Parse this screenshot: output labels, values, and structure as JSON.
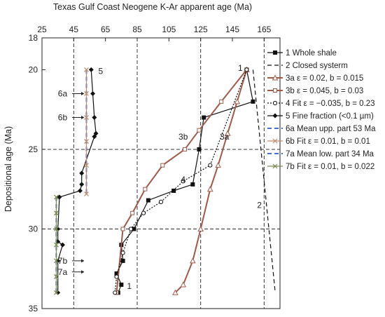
{
  "chart_data": {
    "type": "line",
    "title": "Texas Gulf Coast Neogene K-Ar apparent age (Ma)",
    "ylabel": "Depositional age (Ma)",
    "xlim": [
      25,
      175
    ],
    "ylim": [
      18,
      35
    ],
    "x_ticks": [
      25,
      45,
      65,
      85,
      105,
      125,
      145,
      165
    ],
    "y_ticks": [
      18,
      20,
      25,
      30,
      35
    ],
    "grid_x": [
      45,
      85,
      125,
      165
    ],
    "grid_y": [
      25,
      30
    ],
    "legend_position": "right",
    "series": [
      {
        "name": "1 Whole shale",
        "color": "#111111",
        "style": "solid",
        "marker": "square-filled",
        "x": [
          154,
          158,
          127,
          124,
          120,
          108,
          92,
          83,
          75,
          76,
          72,
          75,
          73
        ],
        "y": [
          20,
          22,
          23,
          25,
          27.2,
          27.6,
          28.2,
          30,
          31,
          32,
          32.8,
          33.5,
          34
        ]
      },
      {
        "name": "2 Closed systerm",
        "color": "#111111",
        "style": "dashed",
        "marker": "none",
        "x": [
          158,
          172
        ],
        "y": [
          20,
          34
        ]
      },
      {
        "name": "3a ε = 0.02, b = 0.015",
        "color": "#a05a4a",
        "style": "solid",
        "marker": "triangle-open",
        "x": [
          154,
          148,
          142,
          136,
          131,
          125,
          120,
          114,
          109
        ],
        "y": [
          20,
          22,
          24,
          26,
          27.5,
          30,
          32,
          33.5,
          34
        ]
      },
      {
        "name": "3b ε = 0.045, b = 0.03",
        "color": "#a05a4a",
        "style": "solid",
        "marker": "square-open",
        "x": [
          154,
          138,
          124,
          115,
          101,
          90,
          82,
          76,
          72
        ],
        "y": [
          20,
          22,
          23.8,
          25,
          26,
          27.5,
          29,
          30,
          34
        ]
      },
      {
        "name": "4 Fit ε = −0.035, b = 0.23",
        "color": "#111111",
        "style": "dotted",
        "marker": "circle-open",
        "x": [
          154,
          131,
          114,
          100,
          89,
          81,
          76,
          72,
          71
        ],
        "y": [
          20,
          26,
          27,
          28.3,
          29,
          30,
          31.5,
          33,
          34
        ]
      },
      {
        "name": "5 Fine fraction (<0.1 µm)",
        "color": "#111111",
        "style": "solid",
        "marker": "diamond-filled",
        "x": [
          56,
          57,
          58,
          59,
          58,
          50,
          50,
          49,
          36,
          35,
          35,
          38,
          35,
          35
        ],
        "y": [
          20,
          21.5,
          23,
          24,
          24.2,
          26.5,
          27.2,
          27.6,
          28,
          30,
          30.8,
          31,
          32,
          34
        ]
      },
      {
        "name": "6a Mean upp. part 53 Ma",
        "color": "#4a6fd0",
        "style": "dashed",
        "marker": "none",
        "x": [
          53,
          53
        ],
        "y": [
          20,
          27.8
        ]
      },
      {
        "name": "6b Fit ε = 0.01, b = 0.01",
        "color": "#c08a70",
        "style": "solid",
        "marker": "x",
        "x": [
          53,
          53,
          53,
          53,
          53,
          53
        ],
        "y": [
          20,
          21.5,
          23,
          24.5,
          26,
          27.8
        ]
      },
      {
        "name": "7a Mean low. part 34 Ma",
        "color": "#4a6fd0",
        "style": "dashed",
        "marker": "none",
        "x": [
          34,
          34
        ],
        "y": [
          28,
          34
        ]
      },
      {
        "name": "7b Fit ε = 0.01, b = 0.022",
        "color": "#7a8a50",
        "style": "solid",
        "marker": "x",
        "x": [
          34,
          34,
          34,
          34,
          34,
          34,
          34
        ],
        "y": [
          28,
          29,
          30,
          31,
          32,
          33,
          34
        ]
      }
    ],
    "annotations": [
      {
        "text": "5",
        "x": 62,
        "y": 20.1
      },
      {
        "text": "6a",
        "x": 38,
        "y": 21.5
      },
      {
        "text": "6b",
        "x": 38,
        "y": 23
      },
      {
        "text": "7b",
        "x": 38,
        "y": 32
      },
      {
        "text": "7a",
        "x": 38,
        "y": 32.7
      },
      {
        "text": "1",
        "x": 150,
        "y": 19.9
      },
      {
        "text": "3b",
        "x": 114,
        "y": 24.2
      },
      {
        "text": "3a",
        "x": 140,
        "y": 24.2
      },
      {
        "text": "4",
        "x": 114,
        "y": 26.9
      },
      {
        "text": "2",
        "x": 162,
        "y": 28.5
      },
      {
        "text": "1",
        "x": 80,
        "y": 33.6
      }
    ]
  }
}
